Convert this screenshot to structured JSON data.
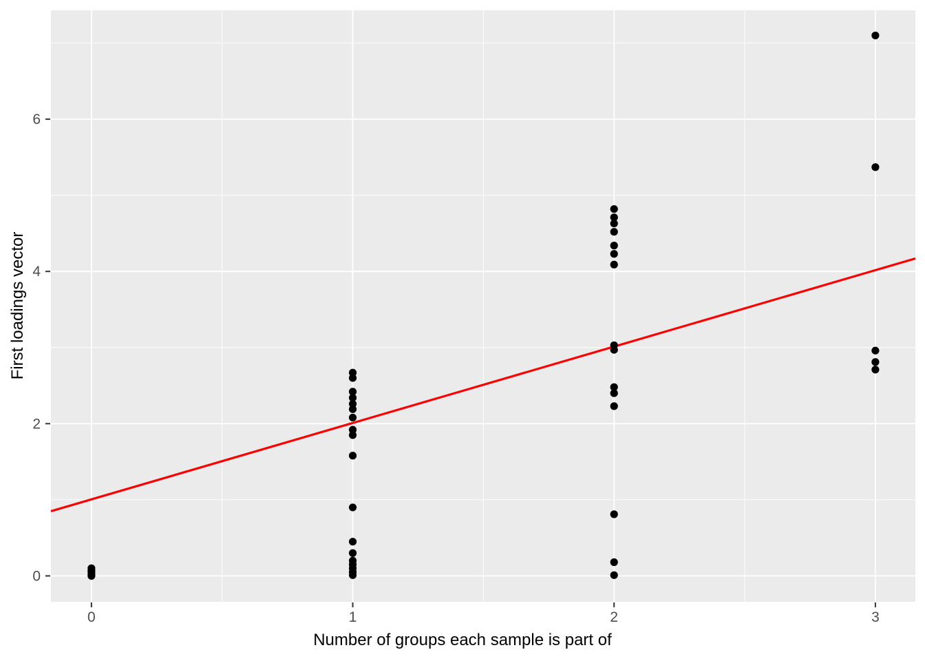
{
  "chart_data": {
    "type": "scatter",
    "title": "",
    "xlabel": "Number of groups each sample is part of",
    "ylabel": "First loadings vector",
    "x_ticks": [
      0,
      1,
      2,
      3
    ],
    "y_ticks": [
      0,
      2,
      4,
      6
    ],
    "x_minor_ticks": [
      0.5,
      1.5,
      2.5
    ],
    "y_minor_ticks": [
      1,
      3,
      5,
      7
    ],
    "xlim": [
      -0.155,
      3.153
    ],
    "ylim": [
      -0.34,
      7.43
    ],
    "grid": "on",
    "legend": "none",
    "groups": [
      {
        "x": 0,
        "values": [
          0.0,
          0.02,
          0.05,
          0.07,
          0.1
        ]
      },
      {
        "x": 1,
        "values": [
          2.67,
          2.6,
          2.42,
          2.34,
          2.26,
          2.19,
          2.08,
          1.92,
          1.85,
          1.58,
          0.9,
          0.45,
          0.3,
          0.2,
          0.15,
          0.1,
          0.05,
          0.01
        ]
      },
      {
        "x": 2,
        "values": [
          4.82,
          4.71,
          4.63,
          4.52,
          4.34,
          4.23,
          4.09,
          3.03,
          2.97,
          2.48,
          2.4,
          2.23,
          0.81,
          0.18,
          0.01
        ]
      },
      {
        "x": 3,
        "values": [
          7.1,
          5.37,
          2.96,
          2.81,
          2.71
        ]
      }
    ],
    "trend_line": {
      "x1": -0.155,
      "y1": 0.85,
      "x2": 3.153,
      "y2": 4.17
    },
    "colors": {
      "point": "#000000",
      "trend_line": "#ff0000",
      "panel_background": "#ebebeb",
      "grid_major": "#ffffff",
      "grid_minor": "#ffffff",
      "tick_mark": "#333333",
      "tick_label": "#4d4d4d",
      "axis_title": "#000000",
      "figure_background": "#ffffff"
    }
  }
}
